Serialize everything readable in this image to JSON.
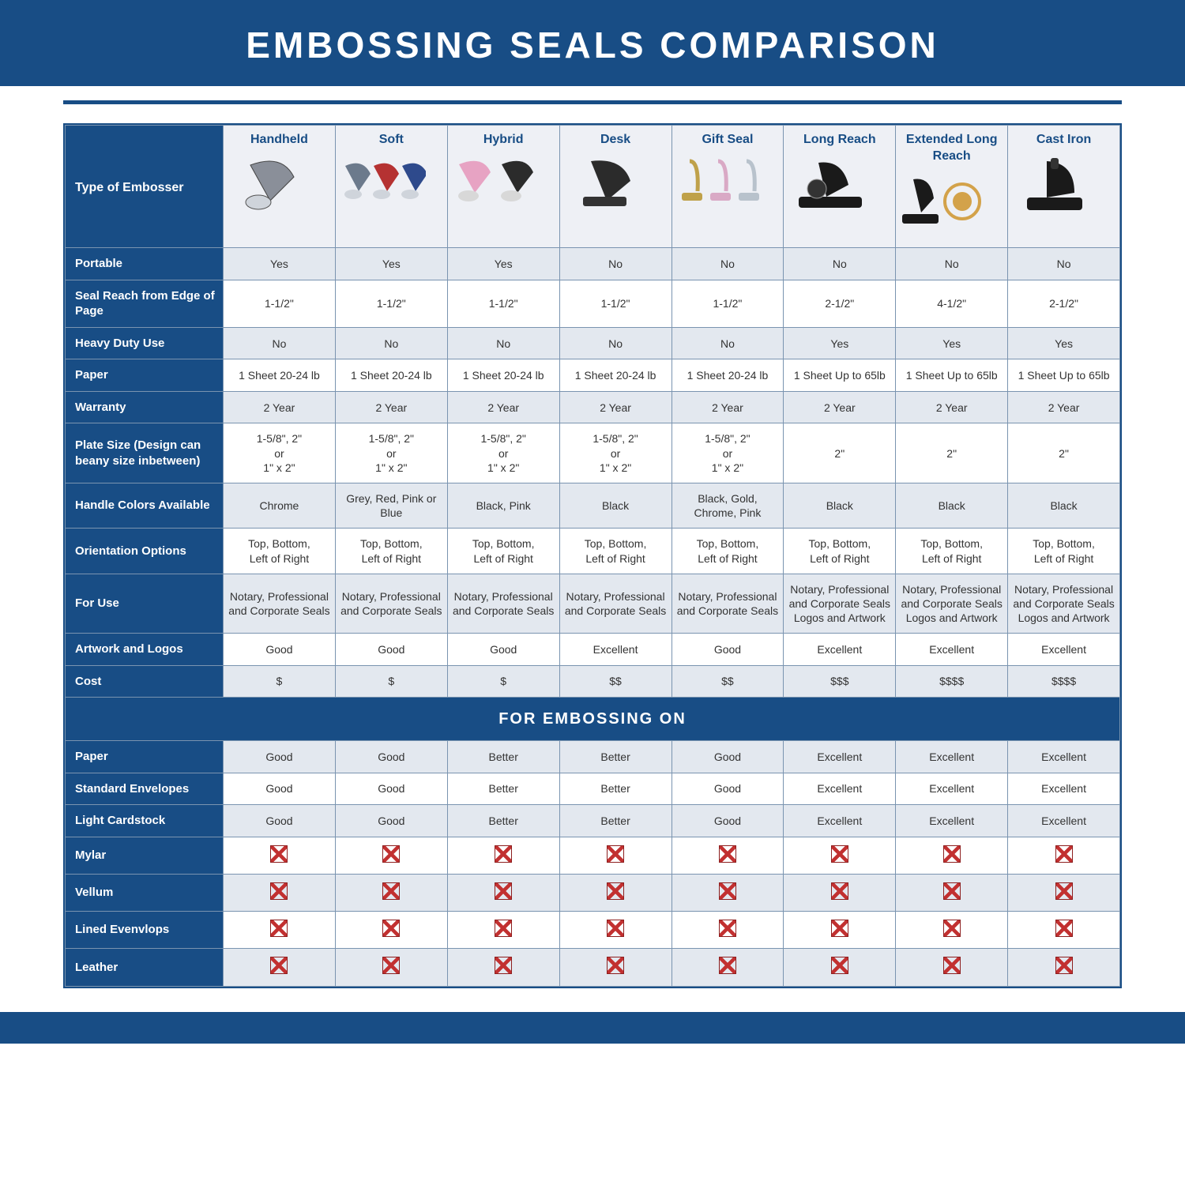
{
  "title": "EMBOSSING SEALS COMPARISON",
  "section_title": "FOR EMBOSSING ON",
  "colors": {
    "brand": "#184d85",
    "header_bg": "#eef0f5",
    "row_alt": "#e3e8ef",
    "row_plain": "#ffffff",
    "border": "#7a94b0",
    "x_red": "#c23030"
  },
  "row_header_label": "Type of Embosser",
  "columns": [
    {
      "key": "handheld",
      "label": "Handheld",
      "icon_colors": [
        "#8a8f99"
      ]
    },
    {
      "key": "soft",
      "label": "Soft",
      "icon_colors": [
        "#6c7a8c",
        "#b53232",
        "#2e4a8c"
      ]
    },
    {
      "key": "hybrid",
      "label": "Hybrid",
      "icon_colors": [
        "#e7a3c3",
        "#2b2b2b"
      ]
    },
    {
      "key": "desk",
      "label": "Desk",
      "icon_colors": [
        "#2b2b2b"
      ]
    },
    {
      "key": "gift",
      "label": "Gift Seal",
      "icon_colors": [
        "#bfa14a",
        "#d9a9c5",
        "#b8c2cc"
      ]
    },
    {
      "key": "long",
      "label": "Long Reach",
      "icon_colors": [
        "#1a1a1a"
      ]
    },
    {
      "key": "xlong",
      "label": "Extended Long Reach",
      "icon_colors": [
        "#1a1a1a",
        "#d3a24a"
      ]
    },
    {
      "key": "cast",
      "label": "Cast Iron",
      "icon_colors": [
        "#1a1a1a"
      ]
    }
  ],
  "rows_top": [
    {
      "label": "Portable",
      "alt": true,
      "cells": [
        "Yes",
        "Yes",
        "Yes",
        "No",
        "No",
        "No",
        "No",
        "No"
      ]
    },
    {
      "label": "Seal Reach from Edge of Page",
      "alt": false,
      "cells": [
        "1-1/2\"",
        "1-1/2\"",
        "1-1/2\"",
        "1-1/2\"",
        "1-1/2\"",
        "2-1/2\"",
        "4-1/2\"",
        "2-1/2\""
      ]
    },
    {
      "label": "Heavy Duty Use",
      "alt": true,
      "cells": [
        "No",
        "No",
        "No",
        "No",
        "No",
        "Yes",
        "Yes",
        "Yes"
      ]
    },
    {
      "label": "Paper",
      "alt": false,
      "cells": [
        "1 Sheet 20-24 lb",
        "1 Sheet 20-24 lb",
        "1 Sheet 20-24 lb",
        "1 Sheet 20-24 lb",
        "1 Sheet 20-24 lb",
        "1 Sheet Up to 65lb",
        "1 Sheet Up to 65lb",
        "1 Sheet Up to 65lb"
      ]
    },
    {
      "label": "Warranty",
      "alt": true,
      "cells": [
        "2 Year",
        "2 Year",
        "2 Year",
        "2 Year",
        "2 Year",
        "2 Year",
        "2 Year",
        "2 Year"
      ]
    },
    {
      "label": "Plate Size (Design can beany size inbetween)",
      "alt": false,
      "cells": [
        "1-5/8\", 2\"\nor\n1\" x 2\"",
        "1-5/8\", 2\"\nor\n1\" x 2\"",
        "1-5/8\", 2\"\nor\n1\" x 2\"",
        "1-5/8\", 2\"\nor\n1\" x 2\"",
        "1-5/8\", 2\"\nor\n1\" x 2\"",
        "2\"",
        "2\"",
        "2\""
      ]
    },
    {
      "label": "Handle Colors Available",
      "alt": true,
      "cells": [
        "Chrome",
        "Grey, Red, Pink or Blue",
        "Black, Pink",
        "Black",
        "Black, Gold, Chrome, Pink",
        "Black",
        "Black",
        "Black"
      ]
    },
    {
      "label": "Orientation Options",
      "alt": false,
      "cells": [
        "Top, Bottom,\nLeft of Right",
        "Top, Bottom,\nLeft of Right",
        "Top, Bottom,\nLeft of Right",
        "Top, Bottom,\nLeft of Right",
        "Top, Bottom,\nLeft of Right",
        "Top, Bottom,\nLeft of Right",
        "Top, Bottom,\nLeft of Right",
        "Top, Bottom,\nLeft of Right"
      ]
    },
    {
      "label": "For Use",
      "alt": true,
      "cells": [
        "Notary, Professional and Corporate Seals",
        "Notary, Professional and Corporate Seals",
        "Notary, Professional and Corporate Seals",
        "Notary, Professional and Corporate Seals",
        "Notary, Professional and Corporate Seals",
        "Notary, Professional and Corporate Seals Logos and Artwork",
        "Notary, Professional and Corporate Seals Logos and Artwork",
        "Notary, Professional and Corporate Seals Logos and Artwork"
      ]
    },
    {
      "label": "Artwork and Logos",
      "alt": false,
      "cells": [
        "Good",
        "Good",
        "Good",
        "Excellent",
        "Good",
        "Excellent",
        "Excellent",
        "Excellent"
      ]
    },
    {
      "label": "Cost",
      "alt": true,
      "cells": [
        "$",
        "$",
        "$",
        "$$",
        "$$",
        "$$$",
        "$$$$",
        "$$$$"
      ]
    }
  ],
  "rows_bottom": [
    {
      "label": "Paper",
      "alt": true,
      "cells": [
        "Good",
        "Good",
        "Better",
        "Better",
        "Good",
        "Excellent",
        "Excellent",
        "Excellent"
      ]
    },
    {
      "label": "Standard Envelopes",
      "alt": false,
      "cells": [
        "Good",
        "Good",
        "Better",
        "Better",
        "Good",
        "Excellent",
        "Excellent",
        "Excellent"
      ]
    },
    {
      "label": "Light Cardstock",
      "alt": true,
      "cells": [
        "Good",
        "Good",
        "Better",
        "Better",
        "Good",
        "Excellent",
        "Excellent",
        "Excellent"
      ]
    },
    {
      "label": "Mylar",
      "alt": false,
      "cells": [
        "X",
        "X",
        "X",
        "X",
        "X",
        "X",
        "X",
        "X"
      ]
    },
    {
      "label": "Vellum",
      "alt": true,
      "cells": [
        "X",
        "X",
        "X",
        "X",
        "X",
        "X",
        "X",
        "X"
      ]
    },
    {
      "label": "Lined Evenvlops",
      "alt": false,
      "cells": [
        "X",
        "X",
        "X",
        "X",
        "X",
        "X",
        "X",
        "X"
      ]
    },
    {
      "label": "Leather",
      "alt": true,
      "cells": [
        "X",
        "X",
        "X",
        "X",
        "X",
        "X",
        "X",
        "X"
      ]
    }
  ]
}
